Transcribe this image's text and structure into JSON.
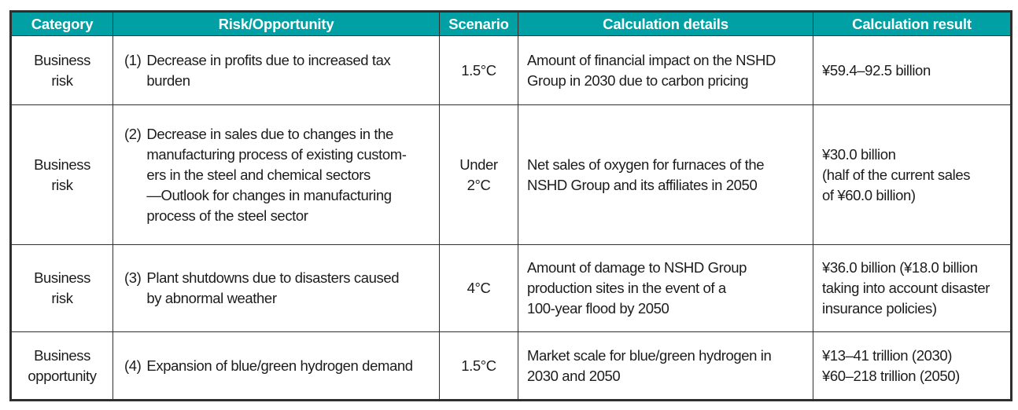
{
  "colors": {
    "header_bg": "#00a0a5",
    "header_text": "#ffffff",
    "border": "#2f2f2f",
    "body_text": "#1c1c1c"
  },
  "table": {
    "headers": {
      "category": "Category",
      "risk": "Risk/Opportunity",
      "scenario": "Scenario",
      "details": "Calculation details",
      "result": "Calculation result"
    },
    "rows": [
      {
        "category": "Business\nrisk",
        "risk_num": "(1)",
        "risk_text": "Decrease in profits due to increased tax\nburden",
        "scenario": "1.5°C",
        "details": "Amount of financial impact on the NSHD\nGroup in 2030 due to carbon pricing",
        "result": "¥59.4–92.5 billion"
      },
      {
        "category": "Business\nrisk",
        "risk_num": "(2)",
        "risk_text": "Decrease in sales due to changes in the\nmanufacturing process of existing custom-\ners in the steel and chemical sectors\n—Outlook for changes in manufacturing\nprocess of the steel sector",
        "scenario": "Under\n2°C",
        "details": "Net sales of oxygen for furnaces of the\nNSHD Group and its affiliates in 2050",
        "result": "¥30.0 billion\n(half of the current sales\nof ¥60.0 billion)"
      },
      {
        "category": "Business\nrisk",
        "risk_num": "(3)",
        "risk_text": "Plant shutdowns due to disasters caused\nby abnormal weather",
        "scenario": "4°C",
        "details": "Amount of damage to NSHD Group\nproduction sites in the event of a\n100-year flood by 2050",
        "result": "¥36.0 billion (¥18.0 billion\ntaking into account disaster\ninsurance policies)"
      },
      {
        "category": "Business\nopportunity",
        "risk_num": "(4)",
        "risk_text": "Expansion of blue/green hydrogen demand",
        "scenario": "1.5°C",
        "details": "Market scale for blue/green hydrogen in\n2030 and 2050",
        "result": "¥13–41 trillion (2030)\n¥60–218 trillion (2050)"
      }
    ]
  }
}
